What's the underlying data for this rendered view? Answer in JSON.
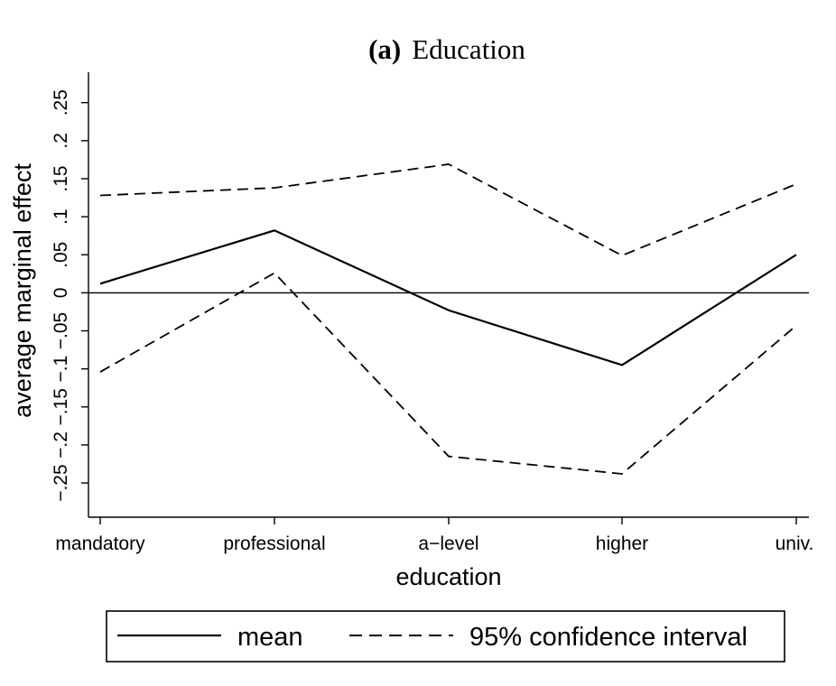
{
  "chart_data": {
    "type": "line",
    "title_prefix": "(a)",
    "title": "Education",
    "xlabel": "education",
    "ylabel": "average marginal effect",
    "categories": [
      "mandatory",
      "professional",
      "a−level",
      "higher",
      "univ."
    ],
    "ylim": [
      -0.295,
      0.29
    ],
    "yticks": [
      -0.25,
      -0.2,
      -0.15,
      -0.1,
      -0.05,
      0,
      0.05,
      0.1,
      0.15,
      0.2,
      0.25
    ],
    "ytick_labels": [
      "−.25",
      "−.2",
      "−.15",
      "−.1",
      "−.05",
      "0",
      ".05",
      ".1",
      ".15",
      ".2",
      ".25"
    ],
    "zero_line": true,
    "grid": false,
    "legend_position": "bottom",
    "series": [
      {
        "name": "mean",
        "style": "solid",
        "values": [
          0.012,
          0.082,
          -0.023,
          -0.095,
          0.05
        ]
      },
      {
        "name": "95% confidence interval",
        "style": "dashed",
        "values": [
          0.128,
          0.138,
          0.169,
          0.049,
          0.143
        ]
      },
      {
        "style": "dashed",
        "values": [
          -0.104,
          0.026,
          -0.215,
          -0.238,
          -0.043
        ]
      }
    ]
  }
}
